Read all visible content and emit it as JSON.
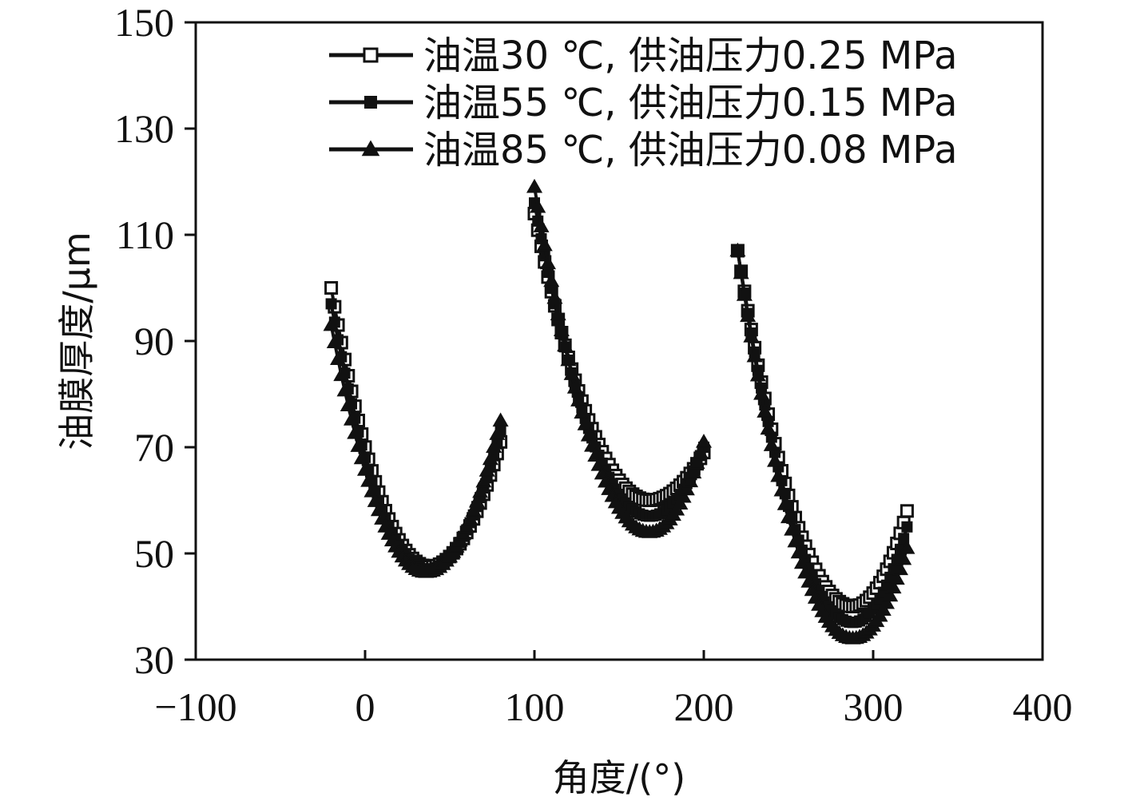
{
  "chart_data": {
    "type": "scatter",
    "title": "",
    "xlabel": "角度/(°)",
    "ylabel": "油膜厚度/μm",
    "xlim": [
      -100,
      400
    ],
    "ylim": [
      30,
      150
    ],
    "xticks": [
      -100,
      0,
      100,
      200,
      300,
      400
    ],
    "yticks": [
      30,
      50,
      70,
      90,
      110,
      130,
      150
    ],
    "xtick_labels": [
      "−100",
      "0",
      "100",
      "200",
      "300",
      "400"
    ],
    "ytick_labels": [
      "30",
      "50",
      "70",
      "90",
      "110",
      "130",
      "150"
    ],
    "grid": false,
    "legend_position": "top-right",
    "series": [
      {
        "name": "油温30 ℃, 供油压力0.25 MPa",
        "marker": "square-open",
        "color": "#111111",
        "segments": [
          {
            "x0": -20,
            "x1": 80,
            "vmin": 38,
            "ymin": 47.5,
            "y0": 100,
            "y1": 71
          },
          {
            "x0": 100,
            "x1": 200,
            "vmin": 168,
            "ymin": 60,
            "y0": 114,
            "y1": 69
          },
          {
            "x0": 220,
            "x1": 320,
            "vmin": 288,
            "ymin": 40,
            "y0": 107,
            "y1": 58
          }
        ]
      },
      {
        "name": "油温55 ℃, 供油压力0.15 MPa",
        "marker": "x-filled",
        "color": "#111111",
        "segments": [
          {
            "x0": -20,
            "x1": 80,
            "vmin": 37,
            "ymin": 47,
            "y0": 97,
            "y1": 73
          },
          {
            "x0": 100,
            "x1": 200,
            "vmin": 168,
            "ymin": 57,
            "y0": 116,
            "y1": 70
          },
          {
            "x0": 220,
            "x1": 320,
            "vmin": 288,
            "ymin": 37,
            "y0": 107,
            "y1": 55
          }
        ]
      },
      {
        "name": "油温85 ℃, 供油压力0.08 MPa",
        "marker": "triangle",
        "color": "#111111",
        "segments": [
          {
            "x0": -20,
            "x1": 80,
            "vmin": 36,
            "ymin": 46.5,
            "y0": 93,
            "y1": 75
          },
          {
            "x0": 100,
            "x1": 200,
            "vmin": 168,
            "ymin": 54,
            "y0": 119,
            "y1": 71
          },
          {
            "x0": 220,
            "x1": 320,
            "vmin": 288,
            "ymin": 34,
            "y0": 107,
            "y1": 51
          }
        ]
      }
    ]
  }
}
